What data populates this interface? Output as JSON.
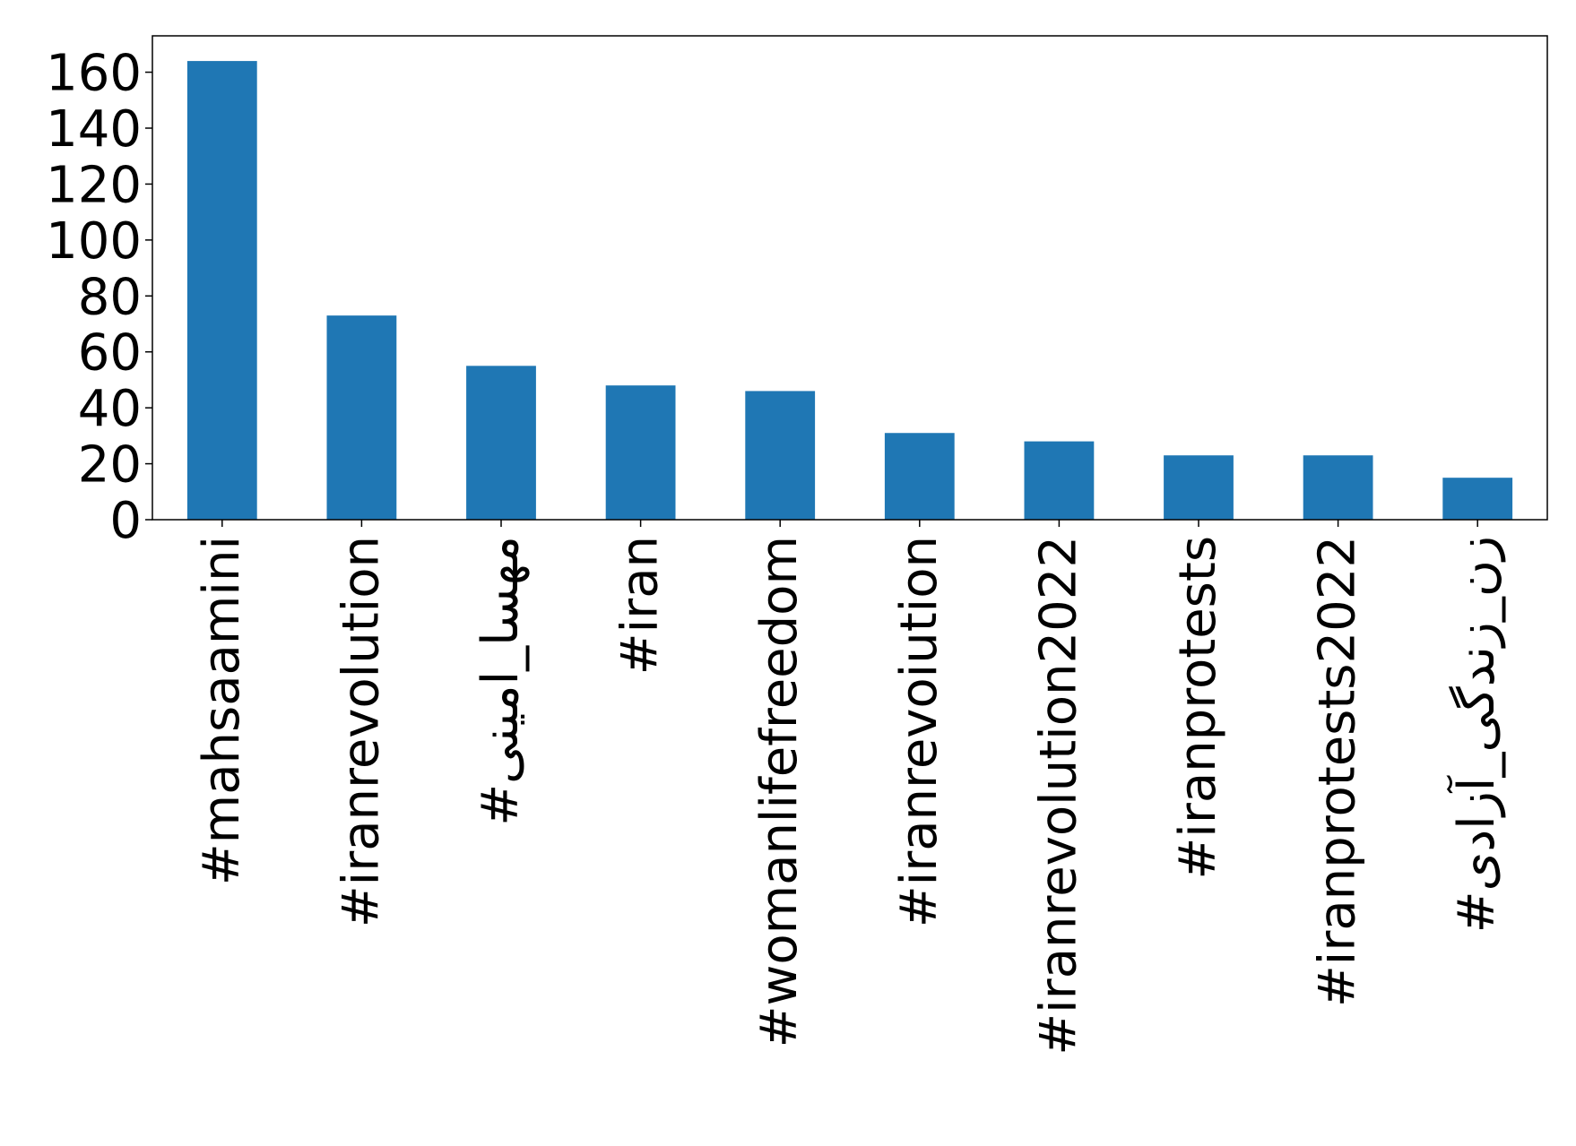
{
  "chart_data": {
    "type": "bar",
    "title": "",
    "xlabel": "",
    "ylabel": "",
    "categories": [
      "#mahsaamini",
      "#iranrevolution",
      "#مهسا_امینی",
      "#iran",
      "#womanlifefreedom",
      "#iranrevoiution",
      "#iranrevolution2022",
      "#iranprotests",
      "#iranprotests2022",
      "#زن_زندگی_آزادی"
    ],
    "values": [
      164,
      73,
      55,
      48,
      46,
      31,
      28,
      23,
      23,
      15
    ],
    "ylim": [
      0,
      173
    ],
    "yticks": [
      0,
      20,
      40,
      60,
      80,
      100,
      120,
      140,
      160
    ],
    "bar_color": "#1f77b4",
    "grid": false,
    "legend": "none"
  }
}
